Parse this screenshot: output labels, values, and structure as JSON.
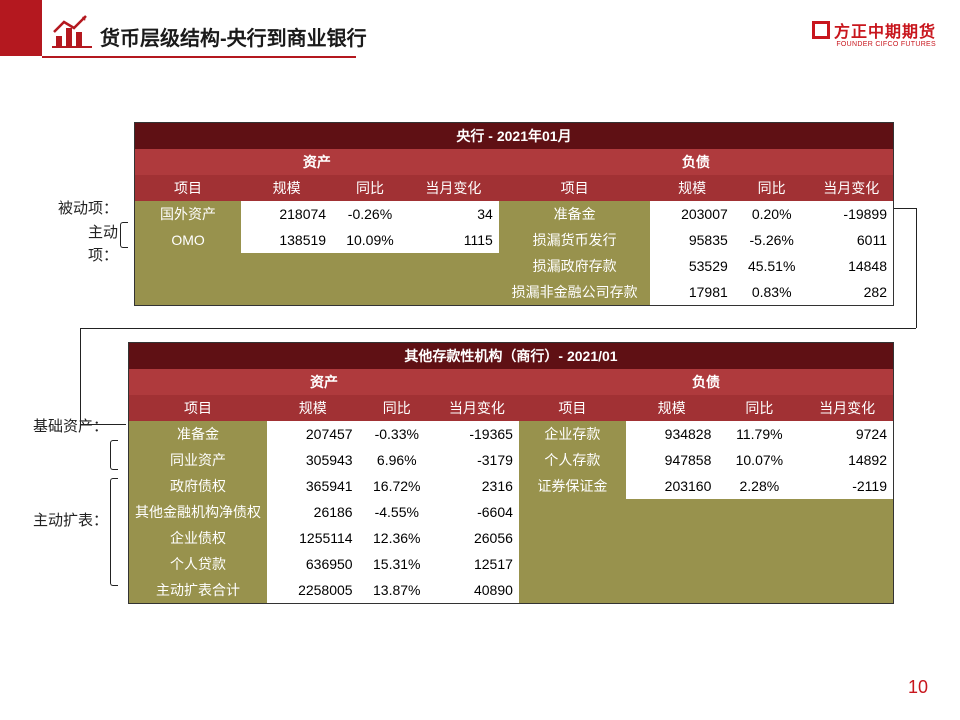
{
  "header": {
    "title": "货币层级结构-央行到商业银行",
    "logo_cn": "方正中期期货",
    "logo_en": "FOUNDER CIFCO FUTURES"
  },
  "page_number": "10",
  "side_labels": {
    "passive": "被动项：",
    "active": "主动\n项：",
    "base_assets": "基础资产：",
    "active_expand": "主动扩表："
  },
  "table1": {
    "title": "央行 - 2021年01月",
    "asset_hdr": "资产",
    "liab_hdr": "负债",
    "cols_left": [
      "项目",
      "规模",
      "同比",
      "当月变化"
    ],
    "cols_right": [
      "项目",
      "规模",
      "同比",
      "当月变化"
    ],
    "rows": [
      {
        "l": [
          "国外资产",
          "218074",
          "-0.26%",
          "34"
        ],
        "r": [
          "准备金",
          "203007",
          "0.20%",
          "-19899"
        ]
      },
      {
        "l": [
          "OMO",
          "138519",
          "10.09%",
          "1115"
        ],
        "r": [
          "损漏货币发行",
          "95835",
          "-5.26%",
          "6011"
        ]
      },
      {
        "l": [
          "",
          "",
          "",
          ""
        ],
        "r": [
          "损漏政府存款",
          "53529",
          "45.51%",
          "14848"
        ]
      },
      {
        "l": [
          "",
          "",
          "",
          ""
        ],
        "r": [
          "损漏非金融公司存款",
          "17981",
          "0.83%",
          "282"
        ]
      }
    ]
  },
  "table2": {
    "title": "其他存款性机构（商行）- 2021/01",
    "asset_hdr": "资产",
    "liab_hdr": "负债",
    "cols_left": [
      "项目",
      "规模",
      "同比",
      "当月变化"
    ],
    "cols_right": [
      "项目",
      "规模",
      "同比",
      "当月变化"
    ],
    "rows": [
      {
        "l": [
          "准备金",
          "207457",
          "-0.33%",
          "-19365"
        ],
        "r": [
          "企业存款",
          "934828",
          "11.79%",
          "9724"
        ]
      },
      {
        "l": [
          "同业资产",
          "305943",
          "6.96%",
          "-3179"
        ],
        "r": [
          "个人存款",
          "947858",
          "10.07%",
          "14892"
        ]
      },
      {
        "l": [
          "政府债权",
          "365941",
          "16.72%",
          "2316"
        ],
        "r": [
          "证券保证金",
          "203160",
          "2.28%",
          "-2119"
        ]
      },
      {
        "l": [
          "其他金融机构净债权",
          "26186",
          "-4.55%",
          "-6604"
        ],
        "r": [
          "",
          "",
          "",
          ""
        ]
      },
      {
        "l": [
          "企业债权",
          "1255114",
          "12.36%",
          "26056"
        ],
        "r": [
          "",
          "",
          "",
          ""
        ]
      },
      {
        "l": [
          "个人贷款",
          "636950",
          "15.31%",
          "12517"
        ],
        "r": [
          "",
          "",
          "",
          ""
        ]
      },
      {
        "l": [
          "主动扩表合计",
          "2258005",
          "13.87%",
          "40890"
        ],
        "r": [
          "",
          "",
          "",
          ""
        ]
      }
    ]
  },
  "colors": {
    "brand_red": "#b4181f",
    "hdr_dark": "#5f1014",
    "hdr_red": "#af3a3d",
    "olive": "#98924d"
  }
}
